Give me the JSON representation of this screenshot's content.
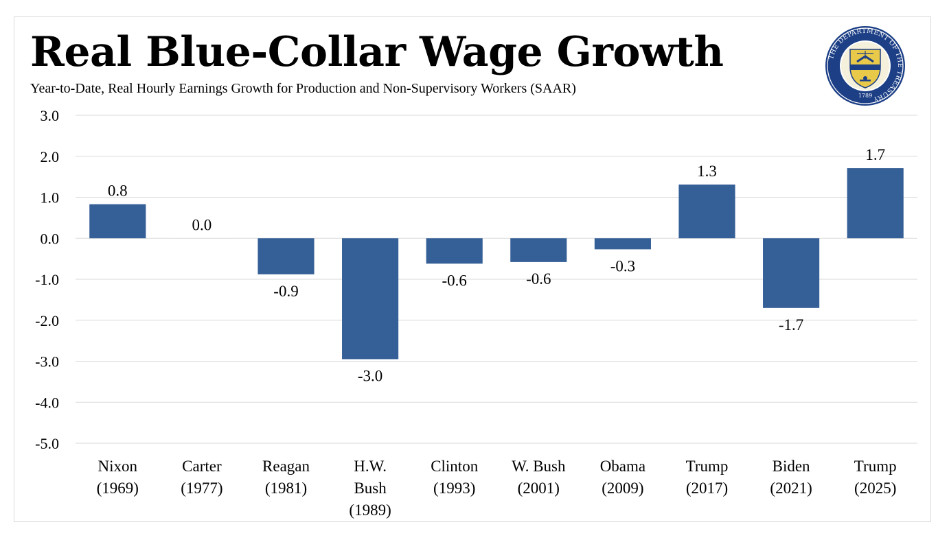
{
  "header": {
    "title": "Real Blue-Collar Wage Growth",
    "subtitle": "Year-to-Date, Real Hourly Earnings Growth for Production and Non-Supervisory Workers (SAAR)"
  },
  "seal": {
    "text": "THE DEPARTMENT OF THE TREASURY",
    "year": "1789",
    "colors": {
      "ring": "#1c3f86",
      "inner": "#ffffff",
      "shield": "#e8c94a"
    }
  },
  "chart_data": {
    "type": "bar",
    "title": "Real Blue-Collar Wage Growth",
    "subtitle": "Year-to-Date, Real Hourly Earnings Growth for Production and Non-Supervisory Workers (SAAR)",
    "xlabel": "",
    "ylabel": "",
    "ylim": [
      -5,
      3
    ],
    "yticks": [
      "3.0",
      "2.0",
      "1.0",
      "0.0",
      "-1.0",
      "-2.0",
      "-3.0",
      "-4.0",
      "-5.0"
    ],
    "ytick_values": [
      3,
      2,
      1,
      0,
      -1,
      -2,
      -3,
      -4,
      -5
    ],
    "grid": true,
    "legend": "none",
    "bar_color": "#355f97",
    "categories": [
      [
        "Nixon",
        "(1969)"
      ],
      [
        "Carter",
        "(1977)"
      ],
      [
        "Reagan",
        "(1981)"
      ],
      [
        "H.W.",
        "Bush",
        "(1989)"
      ],
      [
        "Clinton",
        "(1993)"
      ],
      [
        "W. Bush",
        "(2001)"
      ],
      [
        "Obama",
        "(2009)"
      ],
      [
        "Trump",
        "(2017)"
      ],
      [
        "Biden",
        "(2021)"
      ],
      [
        "Trump",
        "(2025)"
      ]
    ],
    "values": [
      0.83,
      0.0,
      -0.88,
      -2.95,
      -0.62,
      -0.58,
      -0.27,
      1.31,
      -1.7,
      1.71
    ],
    "labels": [
      "0.8",
      "0.0",
      "-0.9",
      "-3.0",
      "-0.6",
      "-0.6",
      "-0.3",
      "1.3",
      "-1.7",
      "1.7"
    ]
  }
}
